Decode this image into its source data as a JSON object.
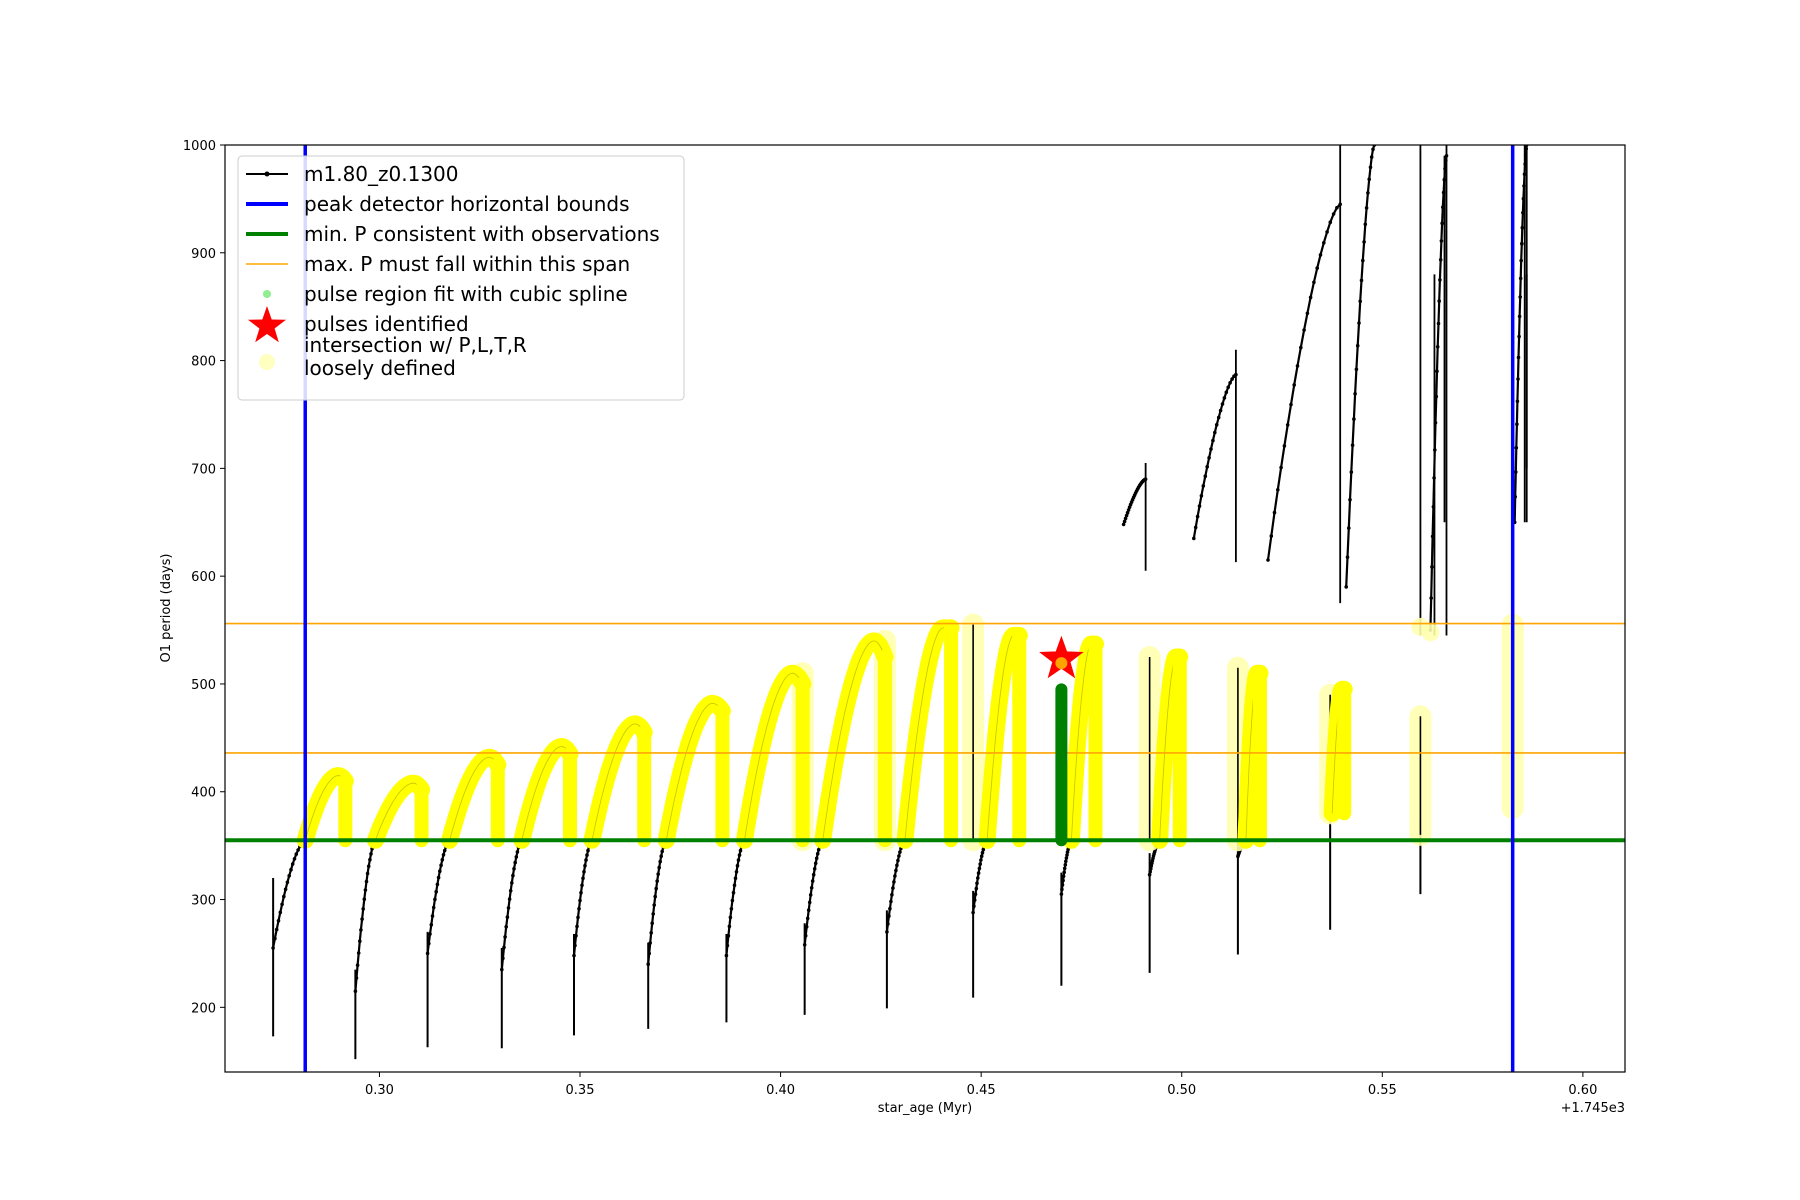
{
  "chart_data": {
    "type": "line",
    "title": "",
    "xlabel": "star_age (Myr)",
    "ylabel": "O1 period (days)",
    "x_offset_label": "+1.745e3",
    "xlim": [
      0.2615,
      0.6105
    ],
    "ylim": [
      140,
      1000
    ],
    "xticks": [
      0.3,
      0.35,
      0.4,
      0.45,
      0.5,
      0.55,
      0.6
    ],
    "xtick_labels": [
      "0.30",
      "0.35",
      "0.40",
      "0.45",
      "0.50",
      "0.55",
      "0.60"
    ],
    "yticks": [
      200,
      300,
      400,
      500,
      600,
      700,
      800,
      900,
      1000
    ],
    "ytick_labels": [
      "200",
      "300",
      "400",
      "500",
      "600",
      "700",
      "800",
      "900",
      "1000"
    ],
    "grid": false,
    "legend_position": "top-left",
    "legend": [
      {
        "label": "m1.80_z0.1300",
        "kind": "line-marker",
        "color": "#000000"
      },
      {
        "label": "peak detector horizontal bounds",
        "kind": "thick-line",
        "color": "#0000ff"
      },
      {
        "label": "min. P consistent with observations",
        "kind": "thick-line",
        "color": "#008000"
      },
      {
        "label": "max. P must fall within this span",
        "kind": "thin-line",
        "color": "#ffa500"
      },
      {
        "label": "pulse region fit with cubic spline",
        "kind": "dot",
        "color": "#90ee90"
      },
      {
        "label": "pulses identified",
        "kind": "star",
        "color": "#ff0000"
      },
      {
        "label": "intersection w/ P,L,T,R\nloosely defined",
        "kind": "circle",
        "color": "#ffffc0"
      }
    ],
    "colors": {
      "model": "#000000",
      "bounds": "#0000ff",
      "min_p": "#008000",
      "max_p_span": "#ffa500",
      "spline": "#008000",
      "intersection": "#ffff00",
      "loose": "#ffffb0",
      "pulse_star": "#ff0000"
    },
    "vertical_bounds": [
      0.2815,
      0.5825
    ],
    "min_period": 355,
    "max_period_span": [
      436,
      556
    ],
    "pulse_identified": {
      "x": 0.47,
      "y": 523
    },
    "spline_region": {
      "x": 0.47,
      "y_range": [
        355,
        495
      ]
    },
    "low_segments": [
      {
        "x0": 0.2735,
        "x1": 0.2815,
        "y0": 255,
        "y1": 355,
        "spike_min": 173,
        "spike_max": 320
      },
      {
        "x0": 0.294,
        "x1": 0.299,
        "y0": 215,
        "y1": 355,
        "spike_min": 152
      },
      {
        "x0": 0.312,
        "x1": 0.3175,
        "y0": 250,
        "y1": 355,
        "spike_min": 163
      },
      {
        "x0": 0.3305,
        "x1": 0.3355,
        "y0": 235,
        "y1": 355,
        "spike_min": 162
      },
      {
        "x0": 0.3485,
        "x1": 0.353,
        "y0": 248,
        "y1": 355,
        "spike_min": 174
      },
      {
        "x0": 0.367,
        "x1": 0.3715,
        "y0": 240,
        "y1": 355,
        "spike_min": 180
      },
      {
        "x0": 0.3865,
        "x1": 0.391,
        "y0": 248,
        "y1": 355,
        "spike_min": 186
      },
      {
        "x0": 0.406,
        "x1": 0.4105,
        "y0": 258,
        "y1": 355,
        "spike_min": 193
      },
      {
        "x0": 0.4265,
        "x1": 0.431,
        "y0": 270,
        "y1": 355,
        "spike_min": 199
      },
      {
        "x0": 0.448,
        "x1": 0.4515,
        "y0": 288,
        "y1": 355,
        "spike_min": 209
      },
      {
        "x0": 0.47,
        "x1": 0.4725,
        "y0": 305,
        "y1": 355,
        "spike_min": 220
      },
      {
        "x0": 0.492,
        "x1": 0.4945,
        "y0": 323,
        "y1": 355,
        "spike_min": 232
      },
      {
        "x0": 0.514,
        "x1": 0.516,
        "y0": 340,
        "y1": 355,
        "spike_min": 249
      },
      {
        "x0": 0.537,
        "x1": 0.537,
        "y0": 355,
        "y1": 355,
        "spike_min": 272
      },
      {
        "x0": 0.5595,
        "x1": 0.5595,
        "y0": 355,
        "y1": 355,
        "spike_min": 305
      }
    ],
    "yellow_segments": [
      {
        "x0": 0.2815,
        "x1": 0.2915,
        "y0": 355,
        "peak": 415,
        "top": 410
      },
      {
        "x0": 0.299,
        "x1": 0.3105,
        "y0": 355,
        "peak": 408,
        "top": 402
      },
      {
        "x0": 0.3175,
        "x1": 0.3295,
        "y0": 355,
        "peak": 432,
        "top": 425
      },
      {
        "x0": 0.3355,
        "x1": 0.3475,
        "y0": 355,
        "peak": 442,
        "top": 435
      },
      {
        "x0": 0.353,
        "x1": 0.366,
        "y0": 355,
        "peak": 463,
        "top": 455
      },
      {
        "x0": 0.3715,
        "x1": 0.3855,
        "y0": 355,
        "peak": 482,
        "top": 475
      },
      {
        "x0": 0.391,
        "x1": 0.4055,
        "y0": 355,
        "peak": 510,
        "top": 500
      },
      {
        "x0": 0.4105,
        "x1": 0.426,
        "y0": 355,
        "peak": 540,
        "top": 525
      },
      {
        "x0": 0.431,
        "x1": 0.4425,
        "y0": 355,
        "peak": 552,
        "top": 552
      },
      {
        "x0": 0.4515,
        "x1": 0.4595,
        "y0": 355,
        "peak": 545,
        "top": 545
      },
      {
        "x0": 0.4725,
        "x1": 0.4785,
        "y0": 355,
        "peak": 537,
        "top": 537
      },
      {
        "x0": 0.4945,
        "x1": 0.4995,
        "y0": 355,
        "peak": 525,
        "top": 525
      },
      {
        "x0": 0.516,
        "x1": 0.5195,
        "y0": 355,
        "peak": 510,
        "top": 510
      },
      {
        "x0": 0.5375,
        "x1": 0.5405,
        "y0": 380,
        "peak": 495,
        "top": 495
      }
    ],
    "yellow_spikes": [
      {
        "x": 0.4055,
        "y0": 355,
        "y1": 510
      },
      {
        "x": 0.426,
        "y0": 355,
        "y1": 540
      },
      {
        "x": 0.448,
        "y0": 355,
        "y1": 555
      },
      {
        "x": 0.492,
        "y0": 355,
        "y1": 525
      },
      {
        "x": 0.514,
        "y0": 355,
        "y1": 515
      },
      {
        "x": 0.537,
        "y0": 380,
        "y1": 490
      },
      {
        "x": 0.5595,
        "y0": 360,
        "y1": 470
      },
      {
        "x": 0.5825,
        "y0": 385,
        "y1": 555
      }
    ],
    "upper_segments": [
      {
        "x0": 0.4855,
        "x1": 0.491,
        "y0": 648,
        "y1": 690,
        "drop_min": 605,
        "drop_max": 705
      },
      {
        "x0": 0.503,
        "x1": 0.5135,
        "y0": 635,
        "y1": 787,
        "drop_min": 613,
        "drop_max": 810
      },
      {
        "x0": 0.5215,
        "x1": 0.5395,
        "y0": 615,
        "y1": 945,
        "drop_min": 575,
        "drop_max": 1000
      },
      {
        "x0": 0.541,
        "x1": 0.548,
        "y0": 590,
        "y1": 1000
      },
      {
        "x0": 0.562,
        "x1": 0.566,
        "y0": 550,
        "y1": 990,
        "drop_min": 545,
        "drop_max": 1000
      },
      {
        "x0": 0.583,
        "x1": 0.586,
        "y0": 650,
        "y1": 1000,
        "drop_min": 650,
        "drop_max": 1000
      }
    ]
  }
}
